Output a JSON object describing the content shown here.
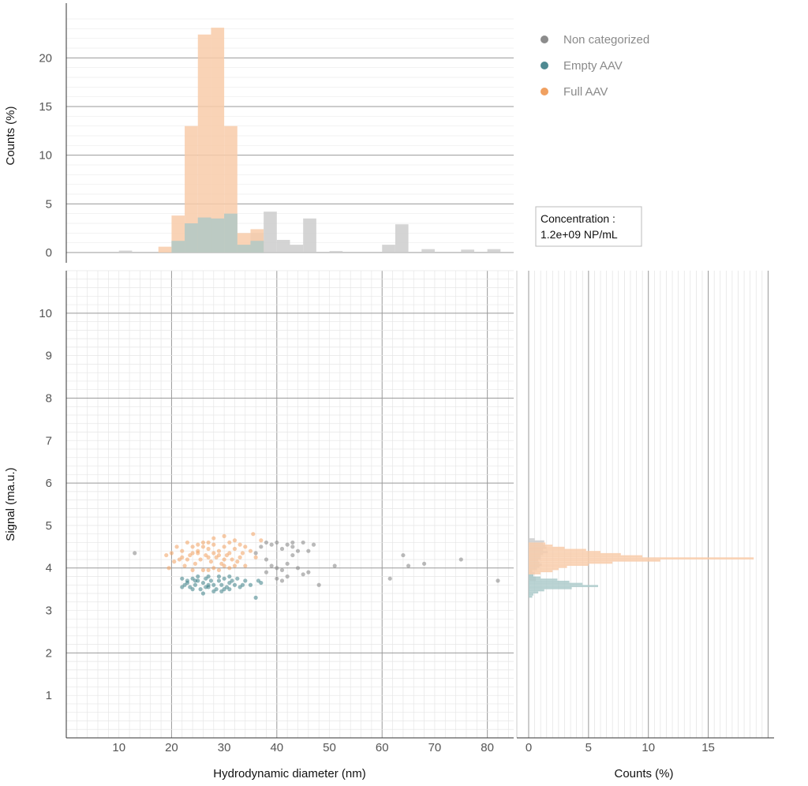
{
  "chart_data": [
    {
      "type": "scatter",
      "role": "main",
      "xlabel": "Hydrodynamic diameter (nm)",
      "ylabel": "Signal (ma.u.)",
      "xlim": [
        0,
        85
      ],
      "ylim": [
        0,
        11
      ],
      "xticks": [
        10,
        20,
        30,
        40,
        50,
        60,
        70,
        80
      ],
      "yticks": [
        1,
        2,
        3,
        4,
        5,
        6,
        7,
        8,
        9,
        10
      ],
      "grid": true,
      "series": [
        {
          "name": "Non categorized",
          "color": "#8c8c8c",
          "points": [
            [
              13,
              4.35
            ],
            [
              36,
              4.35
            ],
            [
              37,
              4.5
            ],
            [
              38,
              4.6
            ],
            [
              39,
              4.55
            ],
            [
              40,
              4.6
            ],
            [
              41,
              4.45
            ],
            [
              42,
              4.55
            ],
            [
              43,
              4.5
            ],
            [
              44,
              4.4
            ],
            [
              45,
              4.6
            ],
            [
              38,
              4.2
            ],
            [
              39,
              4.05
            ],
            [
              40,
              4.0
            ],
            [
              41,
              3.95
            ],
            [
              42,
              4.1
            ],
            [
              43,
              4.3
            ],
            [
              44,
              4.0
            ],
            [
              45,
              3.85
            ],
            [
              46,
              3.9
            ],
            [
              46,
              4.4
            ],
            [
              40,
              3.75
            ],
            [
              41,
              3.7
            ],
            [
              48,
              3.6
            ],
            [
              51,
              4.05
            ],
            [
              61.5,
              3.75
            ],
            [
              64,
              4.3
            ],
            [
              65,
              4.05
            ],
            [
              68,
              4.1
            ],
            [
              75,
              4.2
            ],
            [
              82,
              3.7
            ],
            [
              38,
              3.9
            ],
            [
              42,
              3.8
            ],
            [
              47,
              4.55
            ],
            [
              43,
              4.6
            ]
          ]
        },
        {
          "name": "Empty AAV",
          "color": "#3c7f87",
          "points": [
            [
              22,
              3.75
            ],
            [
              22.5,
              3.6
            ],
            [
              23,
              3.7
            ],
            [
              23.5,
              3.55
            ],
            [
              24,
              3.75
            ],
            [
              24.5,
              3.6
            ],
            [
              25,
              3.7
            ],
            [
              25.5,
              3.5
            ],
            [
              26,
              3.65
            ],
            [
              26.5,
              3.75
            ],
            [
              27,
              3.55
            ],
            [
              27.5,
              3.7
            ],
            [
              28,
              3.6
            ],
            [
              28.5,
              3.5
            ],
            [
              29,
              3.7
            ],
            [
              29.5,
              3.6
            ],
            [
              30,
              3.75
            ],
            [
              30.5,
              3.55
            ],
            [
              31,
              3.65
            ],
            [
              31.5,
              3.7
            ],
            [
              32,
              3.6
            ],
            [
              32.5,
              3.75
            ],
            [
              33,
              3.55
            ],
            [
              26,
              3.4
            ],
            [
              28,
              3.45
            ],
            [
              30,
              3.5
            ],
            [
              25,
              3.8
            ],
            [
              27,
              3.8
            ],
            [
              29,
              3.8
            ],
            [
              31,
              3.8
            ],
            [
              24,
              3.5
            ],
            [
              23,
              3.65
            ],
            [
              34,
              3.7
            ],
            [
              35,
              3.6
            ],
            [
              36,
              3.3
            ],
            [
              36.5,
              3.7
            ],
            [
              37,
              3.65
            ],
            [
              22,
              3.55
            ],
            [
              27,
              3.6
            ],
            [
              29.5,
              3.45
            ],
            [
              31,
              3.5
            ],
            [
              33.5,
              3.6
            ],
            [
              24.5,
              3.7
            ],
            [
              26.5,
              3.55
            ]
          ]
        },
        {
          "name": "Full AAV",
          "color": "#f0a060",
          "points": [
            [
              19,
              4.3
            ],
            [
              19.5,
              4.0
            ],
            [
              20,
              4.35
            ],
            [
              20.5,
              4.15
            ],
            [
              21,
              4.5
            ],
            [
              21.5,
              4.2
            ],
            [
              22,
              4.4
            ],
            [
              22.5,
              4.05
            ],
            [
              23,
              4.6
            ],
            [
              23.5,
              4.3
            ],
            [
              24,
              4.5
            ],
            [
              24.5,
              4.1
            ],
            [
              25,
              4.4
            ],
            [
              25.5,
              4.2
            ],
            [
              26,
              4.6
            ],
            [
              26.5,
              4.3
            ],
            [
              27,
              4.45
            ],
            [
              27.5,
              4.15
            ],
            [
              28,
              4.55
            ],
            [
              28.5,
              4.25
            ],
            [
              29,
              4.4
            ],
            [
              29.5,
              4.1
            ],
            [
              30,
              4.5
            ],
            [
              30.5,
              4.3
            ],
            [
              31,
              4.6
            ],
            [
              31.5,
              4.2
            ],
            [
              32,
              4.45
            ],
            [
              32.5,
              4.15
            ],
            [
              33,
              4.55
            ],
            [
              33.5,
              4.35
            ],
            [
              34,
              4.5
            ],
            [
              35,
              4.4
            ],
            [
              35.5,
              4.8
            ],
            [
              36,
              4.25
            ],
            [
              37,
              4.65
            ],
            [
              28,
              4.7
            ],
            [
              30,
              4.75
            ],
            [
              26,
              3.95
            ],
            [
              27,
              3.95
            ],
            [
              29,
              3.95
            ],
            [
              31,
              4.0
            ],
            [
              24,
              3.95
            ],
            [
              25,
              4.35
            ],
            [
              27,
              4.25
            ],
            [
              29,
              4.3
            ],
            [
              31,
              4.35
            ],
            [
              33,
              4.25
            ],
            [
              23,
              4.2
            ],
            [
              25,
              4.55
            ],
            [
              28,
              4.0
            ],
            [
              30,
              4.05
            ],
            [
              32,
              4.05
            ],
            [
              34,
              4.05
            ],
            [
              26,
              4.5
            ],
            [
              28,
              4.35
            ],
            [
              30,
              4.2
            ],
            [
              22,
              4.25
            ],
            [
              24,
              4.35
            ],
            [
              32,
              4.65
            ],
            [
              27,
              4.6
            ]
          ]
        }
      ]
    },
    {
      "type": "bar",
      "role": "top-histogram",
      "ylabel": "Counts (%)",
      "ylim": [
        0,
        24
      ],
      "yticks": [
        0,
        5,
        10,
        15,
        20
      ],
      "bin_width_nm": 2.5,
      "grid": true,
      "series": [
        {
          "name": "Non categorized",
          "color": "#cccccc",
          "bins": [
            [
              11.25,
              0.2
            ],
            [
              36.25,
              2.0
            ],
            [
              38.75,
              4.2
            ],
            [
              41.25,
              1.3
            ],
            [
              43.75,
              0.8
            ],
            [
              46.25,
              3.5
            ],
            [
              51.25,
              0.15
            ],
            [
              61.25,
              0.8
            ],
            [
              63.75,
              2.9
            ],
            [
              68.75,
              0.35
            ],
            [
              76.25,
              0.3
            ],
            [
              81.25,
              0.35
            ]
          ]
        },
        {
          "name": "Empty AAV",
          "color": "#abcaca",
          "bins": [
            [
              21.25,
              1.2
            ],
            [
              23.75,
              3.0
            ],
            [
              26.25,
              3.6
            ],
            [
              28.75,
              3.5
            ],
            [
              31.25,
              4.0
            ],
            [
              33.75,
              0.8
            ],
            [
              36.25,
              1.2
            ]
          ]
        },
        {
          "name": "Full AAV",
          "color": "#f8cba9",
          "bins": [
            [
              18.75,
              0.6
            ],
            [
              21.25,
              3.8
            ],
            [
              23.75,
              13.0
            ],
            [
              26.25,
              22.4
            ],
            [
              28.75,
              23.1
            ],
            [
              31.25,
              13.0
            ],
            [
              33.75,
              2.0
            ],
            [
              36.25,
              2.4
            ]
          ]
        }
      ]
    },
    {
      "type": "bar",
      "orientation": "horizontal",
      "role": "right-histogram",
      "xlabel": "Counts (%)",
      "xlim": [
        0,
        20.5
      ],
      "xticks": [
        0,
        5,
        10,
        15
      ],
      "bin_width_signal": 0.05,
      "grid": true,
      "series": [
        {
          "name": "Non categorized",
          "color": "#cccccc",
          "bins": [
            [
              3.725,
              0.6
            ],
            [
              3.775,
              0.6
            ],
            [
              3.825,
              0.4
            ],
            [
              3.875,
              0.5
            ],
            [
              3.925,
              0.3
            ],
            [
              3.975,
              0.7
            ],
            [
              4.025,
              0.9
            ],
            [
              4.075,
              1.1
            ],
            [
              4.125,
              0.9
            ],
            [
              4.175,
              0.8
            ],
            [
              4.225,
              1.0
            ],
            [
              4.275,
              1.0
            ],
            [
              4.325,
              1.2
            ],
            [
              4.375,
              1.6
            ],
            [
              4.425,
              1.2
            ],
            [
              4.475,
              1.5
            ],
            [
              4.525,
              1.4
            ],
            [
              4.575,
              1.2
            ],
            [
              4.625,
              1.3
            ],
            [
              4.675,
              0.5
            ]
          ]
        },
        {
          "name": "Empty AAV",
          "color": "#abcaca",
          "bins": [
            [
              3.325,
              0.3
            ],
            [
              3.375,
              0.4
            ],
            [
              3.425,
              0.8
            ],
            [
              3.475,
              1.3
            ],
            [
              3.525,
              3.6
            ],
            [
              3.575,
              5.8
            ],
            [
              3.625,
              4.5
            ],
            [
              3.675,
              3.4
            ],
            [
              3.725,
              2.4
            ],
            [
              3.775,
              1.0
            ],
            [
              3.825,
              0.4
            ]
          ]
        },
        {
          "name": "Full AAV",
          "color": "#f8cba9",
          "bins": [
            [
              3.875,
              1.0
            ],
            [
              3.925,
              2.0
            ],
            [
              3.975,
              2.5
            ],
            [
              4.025,
              3.2
            ],
            [
              4.075,
              5.0
            ],
            [
              4.125,
              7.0
            ],
            [
              4.175,
              11.0
            ],
            [
              4.225,
              18.8
            ],
            [
              4.275,
              9.5
            ],
            [
              4.325,
              7.7
            ],
            [
              4.375,
              6.0
            ],
            [
              4.425,
              4.8
            ],
            [
              4.475,
              3.0
            ],
            [
              4.525,
              2.0
            ],
            [
              4.575,
              1.4
            ]
          ]
        }
      ]
    }
  ],
  "legend": {
    "items": [
      {
        "label": "Non categorized",
        "color": "#8c8c8c"
      },
      {
        "label": "Empty AAV",
        "color": "#4f8a92"
      },
      {
        "label": "Full AAV",
        "color": "#f0a060"
      }
    ]
  },
  "concentration": {
    "line1": "Concentration :",
    "line2": "1.2e+09 NP/mL"
  }
}
